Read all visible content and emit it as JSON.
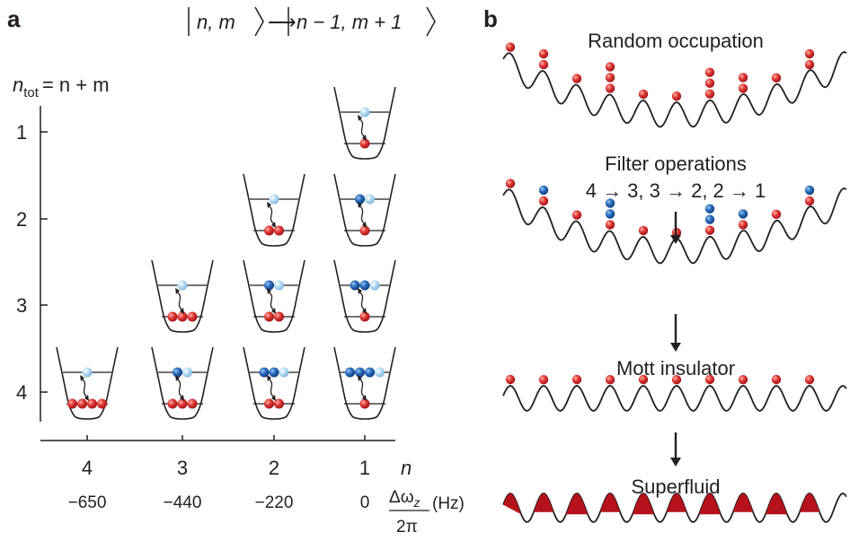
{
  "panel_a": {
    "letter": "a",
    "transition": {
      "ket1": "n, m",
      "ket2": "n − 1, m + 1"
    },
    "y_axis": {
      "label_main": "n",
      "label_sub": "tot",
      "label_rest": "= n + m",
      "ticks": [
        "1",
        "2",
        "3",
        "4"
      ]
    },
    "x_axis": {
      "n_ticks": [
        "4",
        "3",
        "2",
        "1"
      ],
      "n_label": "n",
      "freq_ticks": [
        "−650",
        "−440",
        "−220",
        "0"
      ],
      "freq_label_num": "Δω",
      "freq_label_sub": "z",
      "freq_label_den": "2π",
      "freq_unit": "(Hz)"
    }
  },
  "panel_b": {
    "letter": "b",
    "steps": [
      "Random occupation",
      "Filter operations",
      "4 → 3, 3 → 2, 2 → 1",
      "Mott insulator",
      "Superfluid"
    ]
  },
  "colors": {
    "red_atom": "#d8282e",
    "blue_atom": "#1f5fae",
    "light_blue_atom": "#a8d2ef",
    "superfluid_fill": "#b5121b",
    "line": "#231f20"
  }
}
